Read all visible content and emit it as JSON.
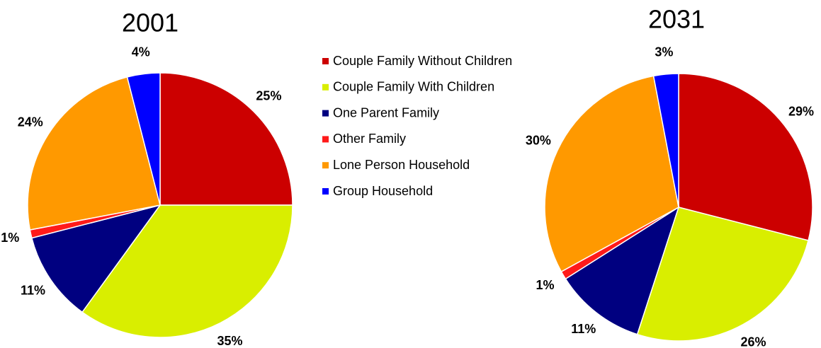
{
  "chart_data": [
    {
      "type": "pie",
      "title": "2001",
      "values": [
        25,
        35,
        11,
        1,
        24,
        4
      ],
      "value_labels": [
        "25%",
        "35%",
        "11%",
        "1%",
        "24%",
        "4%"
      ]
    },
    {
      "type": "pie",
      "title": "2031",
      "values": [
        29,
        26,
        11,
        1,
        30,
        3
      ],
      "value_labels": [
        "29%",
        "26%",
        "11%",
        "1%",
        "30%",
        "3%"
      ]
    }
  ],
  "legend": {
    "labels": [
      "Couple Family Without Children",
      "Couple Family With Children",
      "One Parent Family",
      "Other Family",
      "Lone Person Household",
      "Group Household"
    ],
    "colors": [
      "#cc0000",
      "#d9ee00",
      "#000080",
      "#ff1a1a",
      "#ff9900",
      "#0000ff"
    ]
  }
}
